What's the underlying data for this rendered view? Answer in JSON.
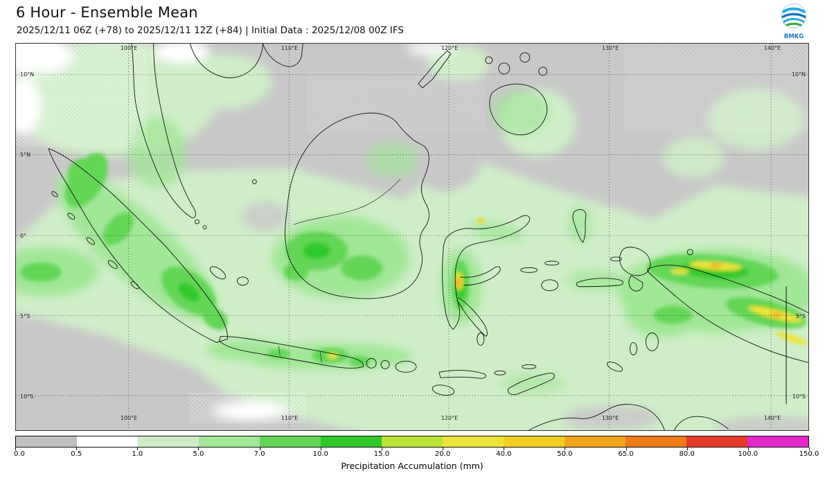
{
  "header": {
    "title": "6 Hour - Ensemble Mean",
    "subtitle": "2025/12/11 06Z (+78) to 2025/12/11 12Z (+84) | Initial Data : 2025/12/08 00Z IFS"
  },
  "logo": {
    "text": "BMKG"
  },
  "map": {
    "lat_labels": [
      "10°N",
      "5°N",
      "0°",
      "5°S",
      "10°S"
    ],
    "lat_labels_right": [
      "10°N",
      "5°S",
      "10°S"
    ],
    "lon_labels": [
      "100°E",
      "110°E",
      "120°E",
      "130°E",
      "140°E"
    ]
  },
  "colorbar": {
    "label": "Precipitation Accumulation (mm)",
    "ticks": [
      "0.0",
      "0.5",
      "1.0",
      "5.0",
      "7.0",
      "10.0",
      "15.0",
      "20.0",
      "40.0",
      "50.0",
      "65.0",
      "80.0",
      "100.0",
      "150.0"
    ],
    "colors": [
      "#c0c0c0",
      "#ffffff",
      "#cfeec8",
      "#a2e698",
      "#63d657",
      "#2fc929",
      "#b9e336",
      "#ece43a",
      "#f2ce25",
      "#f2a61e",
      "#ee7c17",
      "#e83a28",
      "#e228c8"
    ]
  },
  "chart_data": {
    "type": "heatmap",
    "title": "6 Hour - Ensemble Mean",
    "valid_period": "2025/12/11 06Z (+78) to 2025/12/11 12Z (+84)",
    "initial_data": "2025/12/08 00Z IFS",
    "variable": "Precipitation Accumulation (mm)",
    "x_ticks": [
      "100°E",
      "110°E",
      "120°E",
      "130°E",
      "140°E"
    ],
    "y_ticks": [
      "10°N",
      "5°N",
      "0°",
      "5°S",
      "10°S"
    ],
    "colorscale_breaks_mm": [
      0.0,
      0.5,
      1.0,
      5.0,
      7.0,
      10.0,
      15.0,
      20.0,
      40.0,
      50.0,
      65.0,
      80.0,
      100.0,
      150.0
    ],
    "colorscale_colors": [
      "#c0c0c0",
      "#ffffff",
      "#cfeec8",
      "#a2e698",
      "#63d657",
      "#2fc929",
      "#b9e336",
      "#ece43a",
      "#f2ce25",
      "#f2a61e",
      "#ee7c17",
      "#e83a28",
      "#e228c8"
    ]
  }
}
